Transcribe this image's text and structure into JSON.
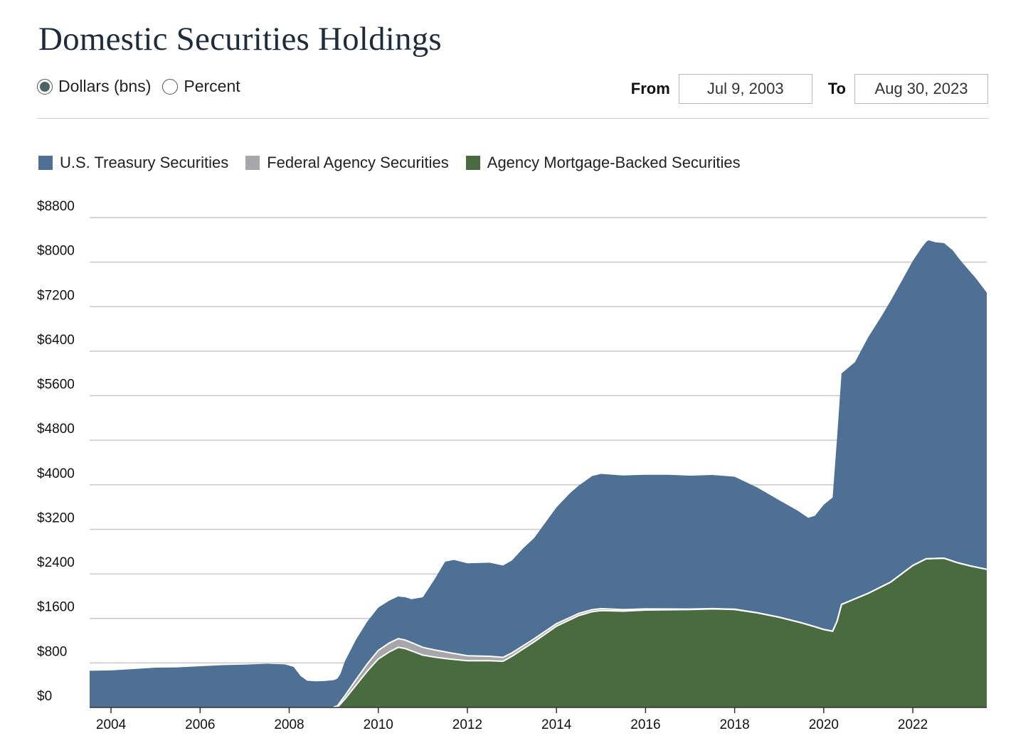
{
  "title": "Domestic Securities Holdings",
  "units": {
    "options": [
      "Dollars (bns)",
      "Percent"
    ],
    "selected": "Dollars (bns)"
  },
  "range": {
    "from_label": "From",
    "from_value": "Jul 9, 2003",
    "to_label": "To",
    "to_value": "Aug 30, 2023"
  },
  "colors": {
    "treasury": "#4e7094",
    "agency": "#a7a7ab",
    "mbs": "#4a6b3f",
    "grid": "#c9c9c9",
    "axis": "#333333"
  },
  "chart_data": {
    "type": "area",
    "stacked": true,
    "title": "Domestic Securities Holdings",
    "ylabel": "",
    "xlabel": "",
    "ylim": [
      0,
      8800
    ],
    "xlim": [
      2003.52,
      2023.66
    ],
    "yticks": [
      0,
      800,
      1600,
      2400,
      3200,
      4000,
      4800,
      5600,
      6400,
      7200,
      8000,
      8800
    ],
    "ytick_labels": [
      "$0",
      "$800",
      "$1600",
      "$2400",
      "$3200",
      "$4000",
      "$4800",
      "$5600",
      "$6400",
      "$7200",
      "$8000",
      "$8800"
    ],
    "xticks": [
      2004,
      2006,
      2008,
      2010,
      2012,
      2014,
      2016,
      2018,
      2020,
      2022
    ],
    "xtick_labels": [
      "2004",
      "2006",
      "2008",
      "2010",
      "2012",
      "2014",
      "2016",
      "2018",
      "2020",
      "2022"
    ],
    "grid": "horizontal",
    "legend_position": "top-left",
    "series": [
      {
        "name": "Agency Mortgage-Backed Securities",
        "color_key": "mbs",
        "points": [
          [
            2003.52,
            0
          ],
          [
            2009.08,
            0
          ],
          [
            2009.25,
            150
          ],
          [
            2009.5,
            400
          ],
          [
            2009.75,
            650
          ],
          [
            2010.0,
            870
          ],
          [
            2010.25,
            1000
          ],
          [
            2010.45,
            1080
          ],
          [
            2010.6,
            1060
          ],
          [
            2010.8,
            1000
          ],
          [
            2011.0,
            940
          ],
          [
            2011.3,
            900
          ],
          [
            2011.6,
            870
          ],
          [
            2012.0,
            840
          ],
          [
            2012.5,
            840
          ],
          [
            2012.8,
            830
          ],
          [
            2013.0,
            920
          ],
          [
            2013.5,
            1180
          ],
          [
            2014.0,
            1460
          ],
          [
            2014.5,
            1650
          ],
          [
            2014.8,
            1720
          ],
          [
            2015.0,
            1740
          ],
          [
            2015.5,
            1730
          ],
          [
            2016.0,
            1750
          ],
          [
            2016.5,
            1755
          ],
          [
            2017.0,
            1760
          ],
          [
            2017.5,
            1770
          ],
          [
            2018.0,
            1760
          ],
          [
            2018.5,
            1700
          ],
          [
            2019.0,
            1620
          ],
          [
            2019.5,
            1520
          ],
          [
            2019.8,
            1450
          ],
          [
            2020.0,
            1400
          ],
          [
            2020.2,
            1370
          ],
          [
            2020.3,
            1550
          ],
          [
            2020.4,
            1850
          ],
          [
            2020.7,
            1950
          ],
          [
            2021.0,
            2050
          ],
          [
            2021.5,
            2250
          ],
          [
            2022.0,
            2550
          ],
          [
            2022.3,
            2670
          ],
          [
            2022.7,
            2680
          ],
          [
            2023.0,
            2600
          ],
          [
            2023.3,
            2540
          ],
          [
            2023.66,
            2480
          ]
        ]
      },
      {
        "name": "Federal Agency Securities",
        "color_key": "agency",
        "points": [
          [
            2003.52,
            0
          ],
          [
            2008.8,
            0
          ],
          [
            2009.0,
            10
          ],
          [
            2009.1,
            30
          ],
          [
            2009.25,
            60
          ],
          [
            2009.5,
            100
          ],
          [
            2009.75,
            130
          ],
          [
            2010.0,
            155
          ],
          [
            2010.25,
            160
          ],
          [
            2010.5,
            155
          ],
          [
            2010.75,
            150
          ],
          [
            2011.0,
            140
          ],
          [
            2011.5,
            120
          ],
          [
            2012.0,
            90
          ],
          [
            2012.5,
            80
          ],
          [
            2012.8,
            70
          ],
          [
            2013.0,
            60
          ],
          [
            2013.5,
            55
          ],
          [
            2014.0,
            45
          ],
          [
            2014.5,
            40
          ],
          [
            2015.0,
            35
          ],
          [
            2016.0,
            20
          ],
          [
            2017.0,
            8
          ],
          [
            2018.0,
            5
          ],
          [
            2019.0,
            3
          ],
          [
            2020.0,
            2
          ],
          [
            2021.0,
            2
          ],
          [
            2022.0,
            2
          ],
          [
            2023.66,
            2
          ]
        ]
      },
      {
        "name": "U.S. Treasury Securities",
        "color_key": "treasury",
        "points": [
          [
            2003.52,
            660
          ],
          [
            2004.0,
            665
          ],
          [
            2004.5,
            690
          ],
          [
            2005.0,
            715
          ],
          [
            2005.5,
            720
          ],
          [
            2006.0,
            740
          ],
          [
            2006.5,
            760
          ],
          [
            2007.0,
            770
          ],
          [
            2007.5,
            785
          ],
          [
            2007.9,
            775
          ],
          [
            2008.1,
            730
          ],
          [
            2008.25,
            570
          ],
          [
            2008.4,
            480
          ],
          [
            2008.6,
            470
          ],
          [
            2009.0,
            480
          ],
          [
            2009.15,
            500
          ],
          [
            2009.25,
            620
          ],
          [
            2009.5,
            720
          ],
          [
            2009.75,
            760
          ],
          [
            2010.0,
            770
          ],
          [
            2010.25,
            760
          ],
          [
            2010.5,
            760
          ],
          [
            2010.75,
            780
          ],
          [
            2011.0,
            900
          ],
          [
            2011.25,
            1250
          ],
          [
            2011.5,
            1620
          ],
          [
            2011.7,
            1680
          ],
          [
            2012.0,
            1660
          ],
          [
            2012.5,
            1680
          ],
          [
            2012.8,
            1650
          ],
          [
            2013.0,
            1660
          ],
          [
            2013.25,
            1750
          ],
          [
            2013.5,
            1810
          ],
          [
            2014.0,
            2090
          ],
          [
            2014.3,
            2230
          ],
          [
            2014.6,
            2330
          ],
          [
            2014.8,
            2400
          ],
          [
            2015.0,
            2420
          ],
          [
            2015.5,
            2410
          ],
          [
            2016.0,
            2410
          ],
          [
            2016.5,
            2410
          ],
          [
            2017.0,
            2395
          ],
          [
            2017.5,
            2400
          ],
          [
            2018.0,
            2380
          ],
          [
            2018.5,
            2250
          ],
          [
            2019.0,
            2100
          ],
          [
            2019.4,
            2000
          ],
          [
            2019.65,
            1920
          ],
          [
            2019.8,
            1990
          ],
          [
            2020.0,
            2240
          ],
          [
            2020.2,
            2400
          ],
          [
            2020.3,
            3300
          ],
          [
            2020.4,
            4150
          ],
          [
            2020.7,
            4250
          ],
          [
            2021.0,
            4600
          ],
          [
            2021.3,
            4860
          ],
          [
            2021.5,
            5050
          ],
          [
            2021.8,
            5300
          ],
          [
            2022.0,
            5470
          ],
          [
            2022.2,
            5630
          ],
          [
            2022.35,
            5720
          ],
          [
            2022.5,
            5680
          ],
          [
            2022.7,
            5660
          ],
          [
            2022.9,
            5580
          ],
          [
            2023.1,
            5420
          ],
          [
            2023.4,
            5200
          ],
          [
            2023.66,
            4970
          ]
        ]
      }
    ]
  }
}
